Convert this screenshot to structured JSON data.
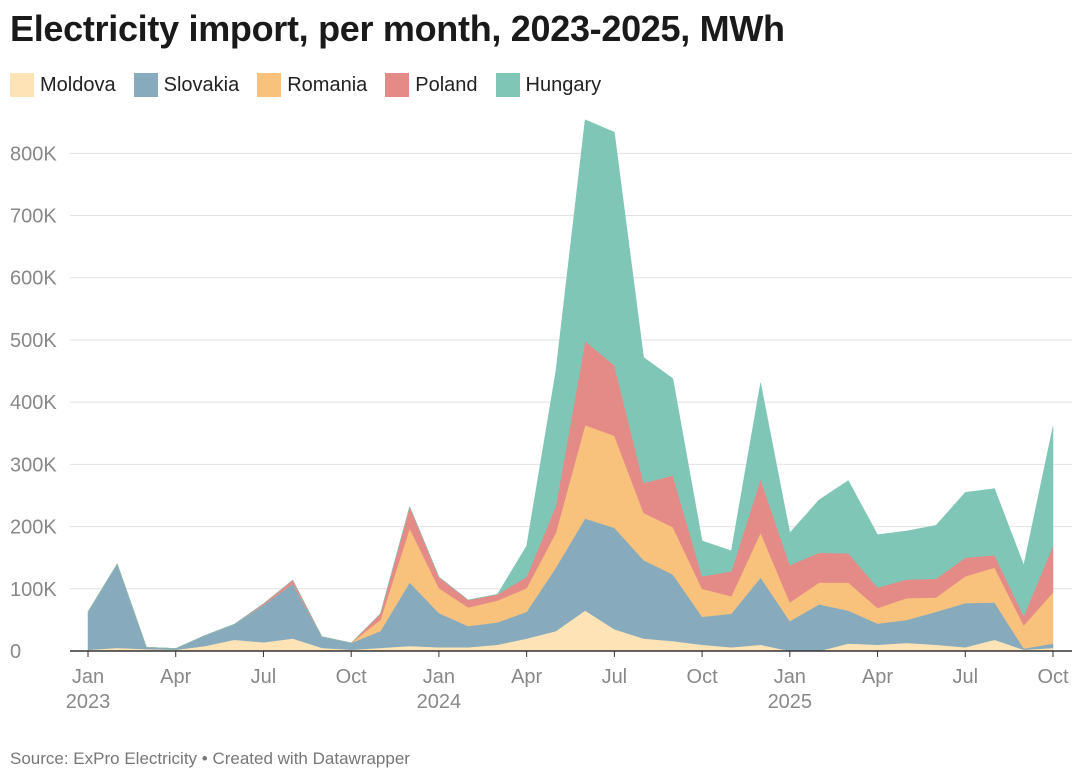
{
  "title": "Electricity import, per month, 2023-2025, MWh",
  "source": "Source: ExPro Electricity • Created with Datawrapper",
  "chart_data": {
    "type": "area",
    "stacked": true,
    "title": "Electricity import, per month, 2023-2025, MWh",
    "x": [
      "2023-01",
      "2023-02",
      "2023-03",
      "2023-04",
      "2023-05",
      "2023-06",
      "2023-07",
      "2023-08",
      "2023-09",
      "2023-10",
      "2023-11",
      "2023-12",
      "2024-01",
      "2024-02",
      "2024-03",
      "2024-04",
      "2024-05",
      "2024-06",
      "2024-07",
      "2024-08",
      "2024-09",
      "2024-10",
      "2024-11",
      "2024-12",
      "2025-01",
      "2025-02",
      "2025-03",
      "2025-04",
      "2025-05",
      "2025-06",
      "2025-07",
      "2025-08",
      "2025-09",
      "2025-10"
    ],
    "x_tick_labels": [
      {
        "label": "Jan",
        "sub": "2023",
        "x": "2023-01"
      },
      {
        "label": "Apr",
        "sub": "",
        "x": "2023-04"
      },
      {
        "label": "Jul",
        "sub": "",
        "x": "2023-07"
      },
      {
        "label": "Oct",
        "sub": "",
        "x": "2023-10"
      },
      {
        "label": "Jan",
        "sub": "2024",
        "x": "2024-01"
      },
      {
        "label": "Apr",
        "sub": "",
        "x": "2024-04"
      },
      {
        "label": "Jul",
        "sub": "",
        "x": "2024-07"
      },
      {
        "label": "Oct",
        "sub": "",
        "x": "2024-10"
      },
      {
        "label": "Jan",
        "sub": "2025",
        "x": "2025-01"
      },
      {
        "label": "Apr",
        "sub": "",
        "x": "2025-04"
      },
      {
        "label": "Jul",
        "sub": "",
        "x": "2025-07"
      },
      {
        "label": "Oct",
        "sub": "",
        "x": "2025-10"
      }
    ],
    "y_ticks": [
      0,
      100000,
      200000,
      300000,
      400000,
      500000,
      600000,
      700000,
      800000
    ],
    "y_tick_labels": [
      "0",
      "100K",
      "200K",
      "300K",
      "400K",
      "500K",
      "600K",
      "700K",
      "800K"
    ],
    "ylim": [
      0,
      860000
    ],
    "grid": true,
    "legend_position": "top-left",
    "series": [
      {
        "name": "Moldova",
        "color": "#fde3b6",
        "values": [
          2000,
          5000,
          3000,
          2000,
          8000,
          18000,
          14000,
          20000,
          5000,
          2000,
          5000,
          8000,
          6000,
          6000,
          10000,
          20000,
          32000,
          65000,
          35000,
          20000,
          16000,
          10000,
          6000,
          10000,
          0,
          0,
          12000,
          10000,
          13000,
          10000,
          6000,
          18000,
          2000,
          5000
        ]
      },
      {
        "name": "Slovakia",
        "color": "#87abbd",
        "values": [
          61000,
          135000,
          3000,
          2000,
          17000,
          25000,
          60000,
          88000,
          18000,
          11000,
          27000,
          102000,
          55000,
          34000,
          36000,
          43000,
          102000,
          148000,
          163000,
          126000,
          107000,
          45000,
          54000,
          108000,
          48000,
          75000,
          53000,
          34000,
          37000,
          53000,
          71000,
          60000,
          2000,
          7000
        ]
      },
      {
        "name": "Romania",
        "color": "#f9c27c",
        "values": [
          0,
          0,
          0,
          0,
          0,
          0,
          0,
          0,
          0,
          0,
          18000,
          87000,
          40000,
          30000,
          35000,
          38000,
          56000,
          150000,
          148000,
          76000,
          76000,
          45000,
          28000,
          72000,
          30000,
          35000,
          45000,
          25000,
          35000,
          23000,
          43000,
          56000,
          37000,
          82000
        ]
      },
      {
        "name": "Poland",
        "color": "#e48b87",
        "values": [
          0,
          0,
          0,
          0,
          0,
          0,
          2000,
          6000,
          0,
          0,
          10000,
          35000,
          18000,
          12000,
          10000,
          18000,
          43000,
          135000,
          113000,
          48000,
          83000,
          20000,
          40000,
          86000,
          60000,
          48000,
          47000,
          33000,
          30000,
          30000,
          30000,
          20000,
          15000,
          75000
        ]
      },
      {
        "name": "Hungary",
        "color": "#7fc6b7",
        "values": [
          0,
          0,
          0,
          0,
          0,
          0,
          0,
          0,
          0,
          0,
          0,
          0,
          0,
          0,
          0,
          50000,
          217000,
          356000,
          375000,
          202000,
          156000,
          57000,
          33000,
          155000,
          52000,
          85000,
          117000,
          85000,
          78000,
          86000,
          105000,
          107000,
          82000,
          192000
        ]
      }
    ]
  }
}
